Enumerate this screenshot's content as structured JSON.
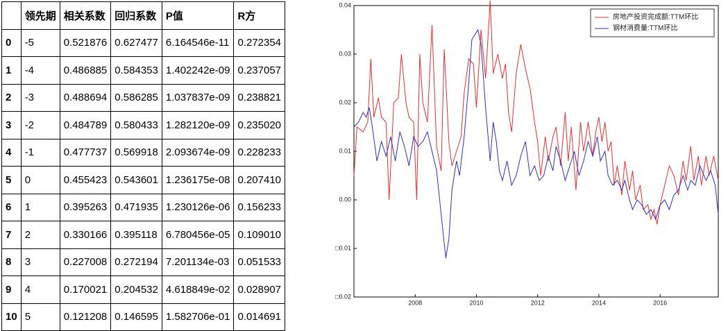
{
  "table": {
    "columns": [
      "领先期",
      "相关系数",
      "回归系数",
      "P值",
      "R方"
    ],
    "rows": [
      [
        "0",
        "-5",
        "0.521876",
        "0.627477",
        "6.164546e-11",
        "0.272354"
      ],
      [
        "1",
        "-4",
        "0.486885",
        "0.584353",
        "1.402242e-09",
        "0.237057"
      ],
      [
        "2",
        "-3",
        "0.488694",
        "0.586285",
        "1.037837e-09",
        "0.238821"
      ],
      [
        "3",
        "-2",
        "0.484789",
        "0.580433",
        "1.282120e-09",
        "0.235020"
      ],
      [
        "4",
        "-1",
        "0.477737",
        "0.569918",
        "2.093674e-09",
        "0.228233"
      ],
      [
        "5",
        "0",
        "0.455423",
        "0.543601",
        "1.236175e-08",
        "0.207410"
      ],
      [
        "6",
        "1",
        "0.395263",
        "0.471935",
        "1.230126e-06",
        "0.156233"
      ],
      [
        "7",
        "2",
        "0.330166",
        "0.395118",
        "6.780456e-05",
        "0.109010"
      ],
      [
        "8",
        "3",
        "0.227008",
        "0.272194",
        "7.201134e-03",
        "0.051533"
      ],
      [
        "9",
        "4",
        "0.170021",
        "0.204532",
        "4.618849e-02",
        "0.028907"
      ],
      [
        "10",
        "5",
        "0.121208",
        "0.146595",
        "1.582706e-01",
        "0.014691"
      ]
    ]
  },
  "chart_data": {
    "type": "line",
    "legend": "upper right",
    "xlim": [
      2006.0,
      2017.9
    ],
    "xticks": [
      2008,
      2010,
      2012,
      2014,
      2016
    ],
    "ylim": [
      -0.02,
      0.04
    ],
    "yticks": [
      {
        "value": -0.02,
        "label": "□0.02"
      },
      {
        "value": -0.01,
        "label": "□0.01"
      },
      {
        "value": 0,
        "label": "0.00"
      },
      0.01,
      0.02,
      0.03,
      0.04
    ],
    "series": [
      {
        "name": "房地产投资完成额:TTM环比",
        "color": "#e03030",
        "x": [
          2006.0,
          2006.1,
          2006.3,
          2006.45,
          2006.55,
          2006.65,
          2006.8,
          2006.9,
          2007.05,
          2007.15,
          2007.3,
          2007.45,
          2007.55,
          2007.7,
          2007.8,
          2007.95,
          2008.05,
          2008.15,
          2008.25,
          2008.4,
          2008.55,
          2008.7,
          2008.85,
          2008.95,
          2009.1,
          2009.2,
          2009.35,
          2009.5,
          2009.6,
          2009.75,
          2009.9,
          2010.0,
          2010.15,
          2010.3,
          2010.45,
          2010.55,
          2010.7,
          2010.85,
          2010.95,
          2011.05,
          2011.15,
          2011.3,
          2011.45,
          2011.6,
          2011.75,
          2011.9,
          2012.0,
          2012.1,
          2012.25,
          2012.35,
          2012.5,
          2012.6,
          2012.75,
          2012.9,
          2013.0,
          2013.1,
          2013.25,
          2013.4,
          2013.5,
          2013.65,
          2013.8,
          2013.9,
          2014.0,
          2014.1,
          2014.2,
          2014.3,
          2014.4,
          2014.5,
          2014.6,
          2014.75,
          2014.85,
          2015.0,
          2015.1,
          2015.2,
          2015.35,
          2015.45,
          2015.6,
          2015.7,
          2015.8,
          2015.9,
          2016.0,
          2016.15,
          2016.3,
          2016.45,
          2016.6,
          2016.75,
          2016.85,
          2017.0,
          2017.1,
          2017.25,
          2017.35,
          2017.5,
          2017.6,
          2017.75,
          2017.9
        ],
        "values": [
          0.005,
          0.015,
          0.014,
          0.016,
          0.029,
          0.017,
          0.021,
          0.017,
          0.016,
          0.0,
          0.02,
          0.021,
          0.03,
          0.02,
          0.017,
          0.016,
          0.0,
          0.03,
          0.02,
          0.016,
          0.036,
          0.011,
          0.006,
          0.031,
          0.012,
          0.007,
          0.01,
          0.013,
          0.022,
          0.029,
          0.028,
          0.019,
          0.035,
          0.025,
          0.041,
          0.026,
          0.03,
          0.025,
          0.028,
          0.018,
          0.014,
          0.026,
          0.032,
          0.027,
          0.023,
          0.016,
          0.012,
          0.005,
          0.013,
          0.008,
          0.013,
          0.015,
          0.007,
          0.018,
          0.008,
          0.015,
          0.002,
          0.016,
          0.01,
          0.016,
          0.009,
          0.014,
          0.017,
          0.012,
          0.016,
          0.01,
          0.012,
          0.003,
          0.007,
          0.001,
          0.008,
          0.002,
          0.006,
          0.0,
          0.003,
          -0.002,
          -0.001,
          -0.004,
          -0.002,
          -0.005,
          -0.001,
          0.003,
          0.007,
          0.005,
          0.001,
          0.008,
          0.004,
          0.011,
          0.004,
          0.009,
          0.003,
          0.009,
          0.005,
          0.009,
          0.004
        ]
      },
      {
        "name": "钢材消费量:TTM环比",
        "color": "#3030b0",
        "x": [
          2006.0,
          2006.15,
          2006.3,
          2006.4,
          2006.5,
          2006.6,
          2006.75,
          2006.9,
          2007.05,
          2007.2,
          2007.35,
          2007.5,
          2007.65,
          2007.8,
          2007.95,
          2008.1,
          2008.25,
          2008.4,
          2008.55,
          2008.7,
          2008.8,
          2008.9,
          2009.0,
          2009.1,
          2009.2,
          2009.35,
          2009.45,
          2009.6,
          2009.75,
          2009.85,
          2009.95,
          2010.05,
          2010.15,
          2010.3,
          2010.45,
          2010.55,
          2010.65,
          2010.75,
          2010.85,
          2011.0,
          2011.15,
          2011.3,
          2011.45,
          2011.6,
          2011.75,
          2011.9,
          2012.05,
          2012.2,
          2012.35,
          2012.5,
          2012.6,
          2012.75,
          2012.9,
          2013.05,
          2013.2,
          2013.35,
          2013.5,
          2013.65,
          2013.8,
          2013.95,
          2014.05,
          2014.2,
          2014.3,
          2014.45,
          2014.6,
          2014.75,
          2014.85,
          2015.0,
          2015.1,
          2015.25,
          2015.4,
          2015.55,
          2015.7,
          2015.85,
          2016.0,
          2016.15,
          2016.3,
          2016.45,
          2016.6,
          2016.75,
          2016.9,
          2017.0,
          2017.15,
          2017.3,
          2017.5,
          2017.65,
          2017.8,
          2017.9
        ],
        "values": [
          0.015,
          0.016,
          0.018,
          0.017,
          0.019,
          0.015,
          0.008,
          0.012,
          0.009,
          0.013,
          0.008,
          0.014,
          0.011,
          0.007,
          0.013,
          0.011,
          0.012,
          0.014,
          0.01,
          0.006,
          0.0,
          -0.006,
          -0.012,
          -0.008,
          0.002,
          0.008,
          0.005,
          0.013,
          0.024,
          0.033,
          0.034,
          0.035,
          0.032,
          0.019,
          0.008,
          0.016,
          0.012,
          0.006,
          0.004,
          0.008,
          0.003,
          0.005,
          0.009,
          0.012,
          0.005,
          0.007,
          0.004,
          0.005,
          0.009,
          0.006,
          0.011,
          0.008,
          0.004,
          0.007,
          0.01,
          0.005,
          0.008,
          0.012,
          0.009,
          0.013,
          0.008,
          0.01,
          0.005,
          0.003,
          0.004,
          0.002,
          0.004,
          0.0,
          -0.002,
          0.0,
          -0.001,
          -0.003,
          -0.002,
          -0.004,
          -0.001,
          0.0,
          -0.002,
          0.001,
          0.002,
          0.005,
          0.002,
          0.004,
          0.003,
          0.007,
          0.004,
          0.006,
          0.003,
          -0.003
        ]
      }
    ]
  }
}
